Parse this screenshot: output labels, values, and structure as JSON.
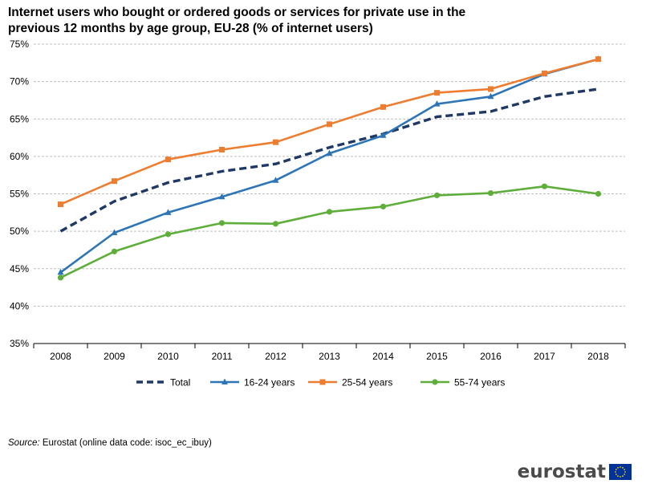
{
  "header": {
    "title_line1": "Internet users who bought or ordered goods or services for private use in the",
    "title_line2": "previous 12 months by age group, EU-28 (% of internet users)"
  },
  "chart_data": {
    "type": "line",
    "title": "Internet users who bought or ordered goods or services for private use in the previous 12 months by age group, EU-28 (% of internet users)",
    "xlabel": "",
    "ylabel": "",
    "categories": [
      "2008",
      "2009",
      "2010",
      "2011",
      "2012",
      "2013",
      "2014",
      "2015",
      "2016",
      "2017",
      "2018"
    ],
    "ylim": [
      35,
      75
    ],
    "yticks": [
      35,
      40,
      45,
      50,
      55,
      60,
      65,
      70,
      75
    ],
    "ytick_labels": [
      "35%",
      "40%",
      "45%",
      "50%",
      "55%",
      "60%",
      "65%",
      "70%",
      "75%"
    ],
    "grid": "horizontal dashed",
    "legend_position": "bottom",
    "series": [
      {
        "name": "Total",
        "color": "#1f3864",
        "style": "dashed",
        "marker": "none",
        "values": [
          50,
          54,
          56.5,
          58,
          59,
          61.2,
          63,
          65.3,
          66,
          68,
          69
        ]
      },
      {
        "name": "16-24 years",
        "color": "#2e75b6",
        "style": "solid",
        "marker": "triangle",
        "values": [
          44.5,
          49.8,
          52.5,
          54.6,
          56.8,
          60.4,
          62.8,
          67,
          68,
          71,
          73
        ]
      },
      {
        "name": "25-54 years",
        "color": "#ed7d31",
        "style": "solid",
        "marker": "square",
        "values": [
          53.6,
          56.7,
          59.6,
          60.9,
          61.9,
          64.3,
          66.6,
          68.5,
          69,
          71.1,
          73
        ]
      },
      {
        "name": "55-74 years",
        "color": "#5fae3c",
        "style": "solid",
        "marker": "circle",
        "values": [
          43.8,
          47.3,
          49.6,
          51.1,
          51,
          52.6,
          53.3,
          54.8,
          55.1,
          56,
          55
        ]
      }
    ]
  },
  "footer": {
    "source_label": "Source:",
    "source_text": " Eurostat (online data code: isoc_ec_ibuy)",
    "logo_text": "eurostat"
  },
  "colors": {
    "grid": "#bfbfbf",
    "axis": "#000000",
    "flag_blue": "#003399",
    "flag_star": "#ffcc00"
  }
}
